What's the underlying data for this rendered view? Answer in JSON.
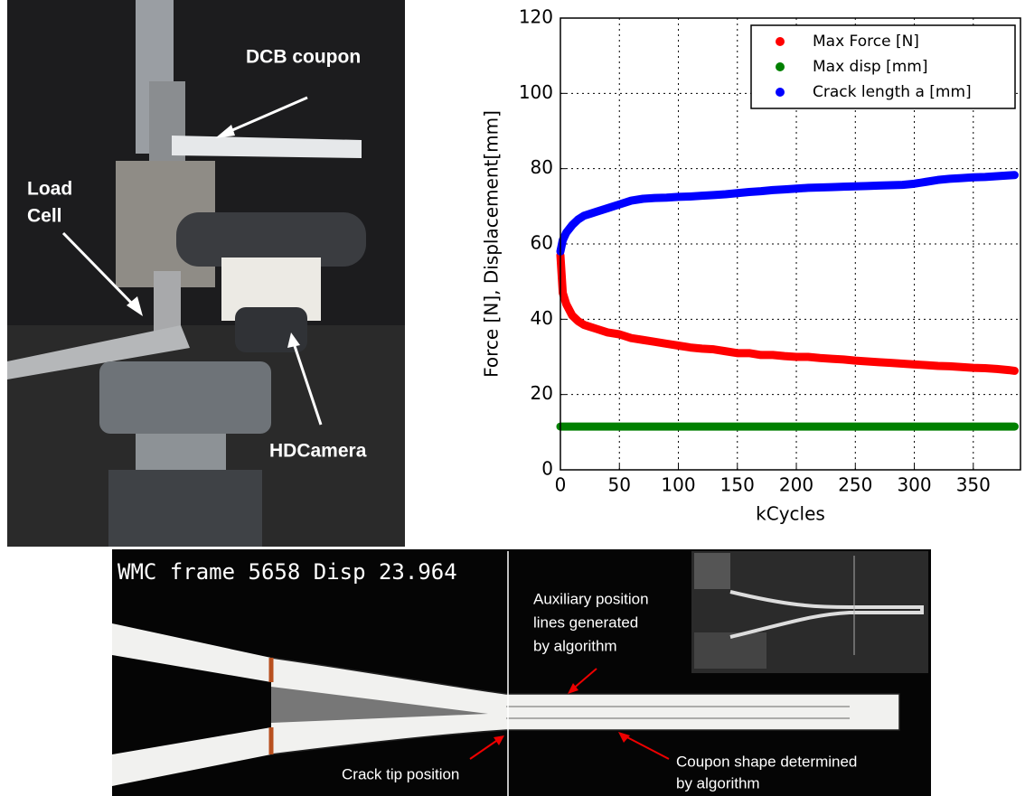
{
  "chart_data": {
    "type": "line",
    "xlabel": "kCycles",
    "ylabel": "Force [N], Displacement[mm]",
    "x": [
      0,
      2,
      5,
      10,
      15,
      20,
      25,
      30,
      40,
      50,
      60,
      70,
      80,
      90,
      100,
      110,
      120,
      130,
      140,
      150,
      160,
      170,
      180,
      190,
      200,
      210,
      220,
      230,
      240,
      250,
      260,
      270,
      280,
      290,
      300,
      310,
      320,
      330,
      340,
      350,
      360,
      370,
      380,
      385
    ],
    "series": [
      {
        "name": "Max Force [N]",
        "color": "#ff0000",
        "values": [
          57,
          47,
          44,
          41,
          39.5,
          38.5,
          38,
          37.5,
          36.5,
          36,
          35,
          34.5,
          34,
          33.5,
          33,
          32.5,
          32.2,
          32,
          31.5,
          31,
          31,
          30.5,
          30.5,
          30.2,
          30,
          30,
          29.7,
          29.5,
          29.3,
          29,
          28.8,
          28.6,
          28.4,
          28.2,
          28,
          27.8,
          27.6,
          27.5,
          27.3,
          27.1,
          27,
          26.8,
          26.5,
          26.3
        ]
      },
      {
        "name": "Max disp [mm]",
        "color": "#008000",
        "values": [
          11.5,
          11.5,
          11.5,
          11.5,
          11.5,
          11.5,
          11.5,
          11.5,
          11.5,
          11.5,
          11.5,
          11.5,
          11.5,
          11.5,
          11.5,
          11.5,
          11.5,
          11.5,
          11.5,
          11.5,
          11.5,
          11.5,
          11.5,
          11.5,
          11.5,
          11.5,
          11.5,
          11.5,
          11.5,
          11.5,
          11.5,
          11.5,
          11.5,
          11.5,
          11.5,
          11.5,
          11.5,
          11.5,
          11.5,
          11.5,
          11.5,
          11.5,
          11.5,
          11.5
        ]
      },
      {
        "name": "Crack length a [mm]",
        "color": "#0000ff",
        "values": [
          58,
          61,
          63,
          65,
          66.5,
          67.5,
          68,
          68.5,
          69.5,
          70.5,
          71.5,
          72,
          72.2,
          72.3,
          72.5,
          72.6,
          72.8,
          73,
          73.2,
          73.5,
          73.8,
          74,
          74.3,
          74.5,
          74.7,
          74.9,
          75,
          75.1,
          75.2,
          75.3,
          75.4,
          75.5,
          75.6,
          75.7,
          76,
          76.5,
          77,
          77.3,
          77.5,
          77.7,
          77.8,
          78,
          78.2,
          78.3
        ]
      }
    ],
    "xlim": [
      0,
      390
    ],
    "xticks": [
      0,
      50,
      100,
      150,
      200,
      250,
      300,
      350
    ],
    "ylim": [
      0,
      120
    ],
    "yticks": [
      0,
      20,
      40,
      60,
      80,
      100,
      120
    ],
    "grid": true,
    "legend": "upper right"
  },
  "photo": {
    "coupon_label": "DCB coupon",
    "load_cell_label": [
      "Load",
      "Cell"
    ],
    "camera_label": "HDCamera"
  },
  "frame_image": {
    "caption": "WMC frame 5658 Disp 23.964",
    "auxiliary_label": [
      "Auxiliary position",
      "lines generated",
      "by algorithm"
    ],
    "crack_tip_label": "Crack tip position",
    "shape_label": [
      "Coupon shape determined",
      "by algorithm"
    ]
  }
}
